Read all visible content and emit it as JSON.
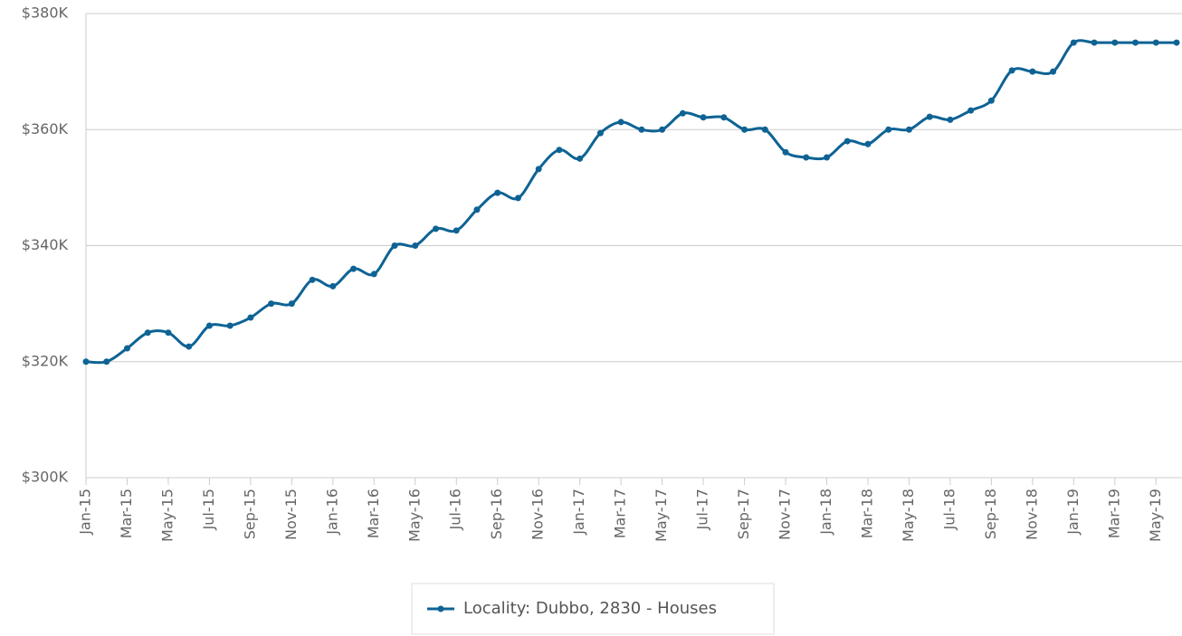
{
  "chart_data": {
    "type": "line",
    "categories": [
      "Jan-15",
      null,
      "Mar-15",
      null,
      "May-15",
      null,
      "Jul-15",
      null,
      "Sep-15",
      null,
      "Nov-15",
      null,
      "Jan-16",
      null,
      "Mar-16",
      null,
      "May-16",
      null,
      "Jul-16",
      null,
      "Sep-16",
      null,
      "Nov-16",
      null,
      "Jan-17",
      null,
      "Mar-17",
      null,
      "May-17",
      null,
      "Jul-17",
      null,
      "Sep-17",
      null,
      "Nov-17",
      null,
      "Jan-18",
      null,
      "Mar-18",
      null,
      "May-18",
      null,
      "Jul-18",
      null,
      "Sep-18",
      null,
      "Nov-18",
      null,
      "Jan-19",
      null,
      "Mar-19",
      null,
      "May-19",
      null
    ],
    "series": [
      {
        "name": "Locality: Dubbo, 2830 - Houses",
        "color": "#0e6394",
        "values": [
          320000,
          320000,
          322300,
          325000,
          325000,
          322600,
          326200,
          326200,
          327600,
          330000,
          330000,
          334100,
          333000,
          336000,
          335100,
          340000,
          340000,
          342900,
          342600,
          346200,
          349100,
          348200,
          353200,
          356500,
          355000,
          359400,
          361300,
          360000,
          360000,
          362800,
          362100,
          362100,
          360000,
          360000,
          356100,
          355200,
          355200,
          358000,
          357500,
          360000,
          360000,
          362200,
          361700,
          363300,
          365000,
          370200,
          370000,
          370000,
          375000,
          375000,
          375000,
          375000,
          375000,
          375000
        ]
      }
    ],
    "ylim": [
      300000,
      380000
    ],
    "yticks": [
      {
        "value": 300000,
        "label": "$300K"
      },
      {
        "value": 320000,
        "label": "$320K"
      },
      {
        "value": 340000,
        "label": "$340K"
      },
      {
        "value": 360000,
        "label": "$360K"
      },
      {
        "value": 380000,
        "label": "$380K"
      }
    ],
    "grid": true,
    "legend": "bottom"
  }
}
